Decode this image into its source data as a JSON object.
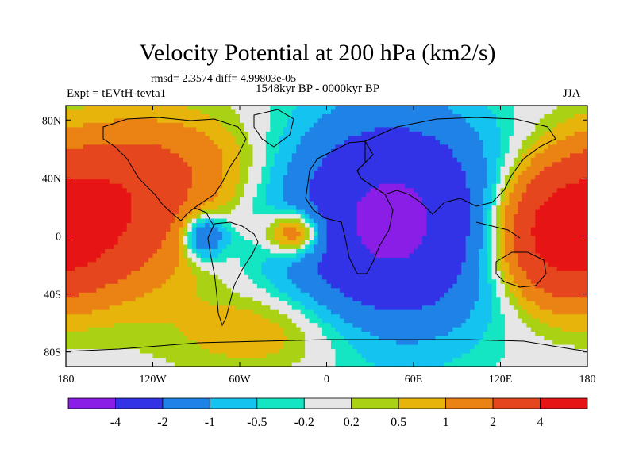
{
  "header": {
    "title": "Velocity Potential at 200 hPa (km2/s)",
    "stats": "rmsd= 2.3574 diff= 4.99803e-05",
    "experiment": "Expt = tEVtH-tevta1",
    "period": "1548kyr BP - 0000kyr BP",
    "season": "JJA"
  },
  "chart_data": {
    "type": "heatmap",
    "title": "Velocity Potential at 200 hPa (km2/s)",
    "xlim": [
      -180,
      180
    ],
    "ylim": [
      -90,
      90
    ],
    "x_ticks": [
      {
        "value": -180,
        "label": "180"
      },
      {
        "value": -120,
        "label": "120W"
      },
      {
        "value": -60,
        "label": "60W"
      },
      {
        "value": 0,
        "label": "0"
      },
      {
        "value": 60,
        "label": "60E"
      },
      {
        "value": 120,
        "label": "120E"
      },
      {
        "value": 180,
        "label": "180"
      }
    ],
    "y_ticks": [
      {
        "value": 80,
        "label": "80N"
      },
      {
        "value": 40,
        "label": "40N"
      },
      {
        "value": 0,
        "label": "0"
      },
      {
        "value": -40,
        "label": "40S"
      },
      {
        "value": -80,
        "label": "80S"
      }
    ],
    "levels": [
      -4,
      -2,
      -1,
      -0.5,
      -0.2,
      0.2,
      0.5,
      1,
      2,
      4
    ],
    "colorbar_labels": [
      "-4",
      "-2",
      "-1",
      "-0.5",
      "-0.2",
      "0.2",
      "0.5",
      "1",
      "2",
      "4"
    ],
    "colors": [
      "#8a1ee6",
      "#3232e6",
      "#1e82e6",
      "#14c3f0",
      "#14e6c3",
      "#e6e6e6",
      "#aad214",
      "#e6b40a",
      "#eb8214",
      "#e6461e",
      "#e61414"
    ],
    "centers": [
      {
        "lon": -155,
        "lat": 15,
        "value": 3.8,
        "spread_lon": 42,
        "spread_lat": 35
      },
      {
        "lon": 160,
        "lat": 0,
        "value": 4.2,
        "spread_lon": 30,
        "spread_lat": 30
      },
      {
        "lon": -20,
        "lat": 2,
        "value": 3.0,
        "spread_lon": 15,
        "spread_lat": 11
      },
      {
        "lon": -85,
        "lat": 0,
        "value": -2.5,
        "spread_lon": 11,
        "spread_lat": 11
      },
      {
        "lon": 45,
        "lat": 10,
        "value": -4.6,
        "spread_lon": 50,
        "spread_lat": 50
      },
      {
        "lon": -100,
        "lat": 50,
        "value": 1.2,
        "spread_lon": 40,
        "spread_lat": 25
      },
      {
        "lon": -40,
        "lat": -65,
        "value": 1.0,
        "spread_lon": 45,
        "spread_lat": 20
      }
    ]
  }
}
